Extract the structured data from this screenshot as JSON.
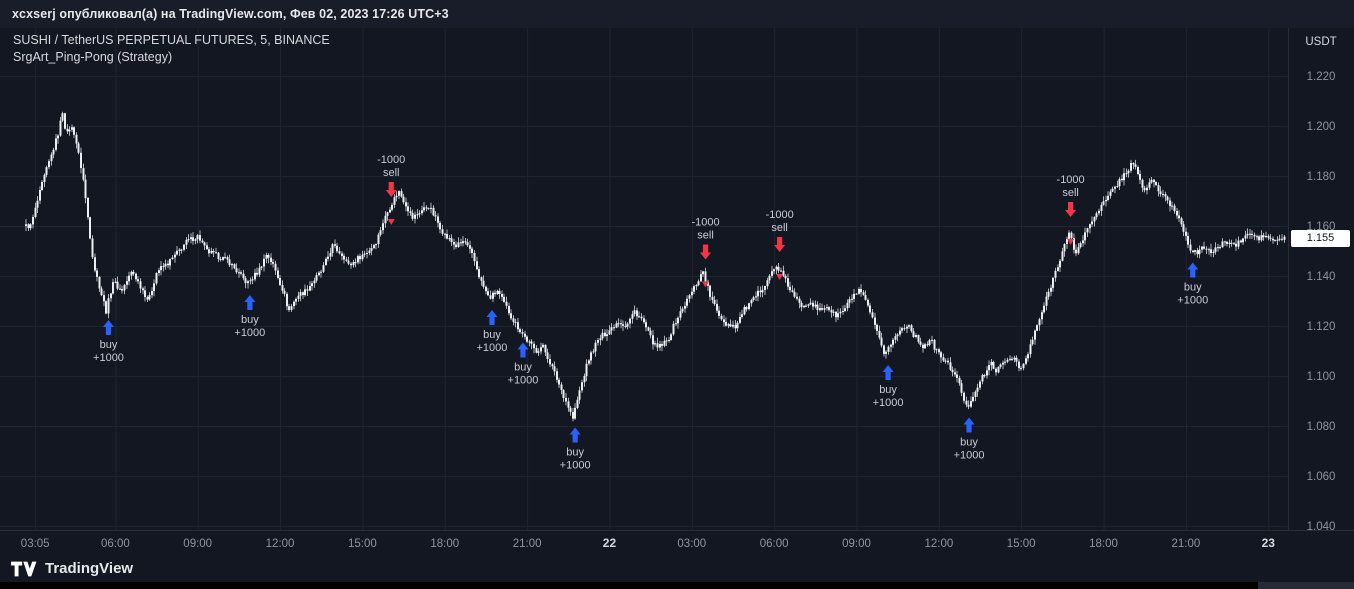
{
  "attribution": {
    "text": "xcxserj опубликовал(а) на TradingView.com, Фев 02, 2023 17:26 UTC+3"
  },
  "legend": {
    "symbol_line": "SUSHI / TetherUS PERPETUAL FUTURES, 5, BINANCE",
    "strategy_line": "SrgArt_Ping-Pong (Strategy)"
  },
  "axis": {
    "currency": "USDT",
    "last_price": "1.155"
  },
  "footer": {
    "logo_text": "TradingView"
  },
  "colors": {
    "background": "#131722",
    "topbar_bg": "#181d29",
    "grid": "#1e2433",
    "candle": "#eceef2",
    "candle_wick": "#d7dae0",
    "axis_text": "#8f95a0",
    "axis_text_major": "#d6d9de",
    "legend_text": "#d5d8dd",
    "marker_text": "#c7ccd3",
    "buy": "#2962ff",
    "sell": "#f23645",
    "badge_bg": "#ffffff",
    "badge_text": "#111722",
    "separator": "#2a2e39",
    "footer_text": "#e6e8eb",
    "bottom_strip": "#000000",
    "bottom_strip_right": "#262b36"
  },
  "chart_data": {
    "type": "candlestick",
    "symbol": "SUSHI / TetherUS PERPETUAL FUTURES",
    "interval": "5",
    "exchange": "BINANCE",
    "strategy": "SrgArt_Ping-Pong (Strategy)",
    "last_price": 1.155,
    "x_unit": "hours since 03:00 of first visible day (5-minute bars)",
    "x_range": [
      -0.25,
      45.6
    ],
    "visible_price_range": [
      1.038,
      1.239
    ],
    "grid": true,
    "y_ticks": [
      1.22,
      1.2,
      1.18,
      1.16,
      1.14,
      1.12,
      1.1,
      1.08,
      1.06,
      1.04
    ],
    "x_ticks": [
      {
        "t": 0.08,
        "label": "03:05"
      },
      {
        "t": 3,
        "label": "06:00"
      },
      {
        "t": 6,
        "label": "09:00"
      },
      {
        "t": 9,
        "label": "12:00"
      },
      {
        "t": 12,
        "label": "15:00"
      },
      {
        "t": 15,
        "label": "18:00"
      },
      {
        "t": 18,
        "label": "21:00"
      },
      {
        "t": 21,
        "label": "22",
        "major": true
      },
      {
        "t": 24,
        "label": "03:00"
      },
      {
        "t": 27,
        "label": "06:00"
      },
      {
        "t": 30,
        "label": "09:00"
      },
      {
        "t": 33,
        "label": "12:00"
      },
      {
        "t": 36,
        "label": "15:00"
      },
      {
        "t": 39,
        "label": "18:00"
      },
      {
        "t": 42,
        "label": "21:00"
      },
      {
        "t": 45,
        "label": "23",
        "major": true
      }
    ],
    "price_path": [
      [
        0,
        1.16
      ],
      [
        0.45,
        1.178
      ],
      [
        0.8,
        1.19
      ],
      [
        1.0,
        1.197
      ],
      [
        1.17,
        1.206
      ],
      [
        1.3,
        1.196
      ],
      [
        1.45,
        1.2
      ],
      [
        1.6,
        1.197
      ],
      [
        1.9,
        1.18
      ],
      [
        2.1,
        1.162
      ],
      [
        2.3,
        1.144
      ],
      [
        2.6,
        1.132
      ],
      [
        2.75,
        1.126
      ],
      [
        3.0,
        1.138
      ],
      [
        3.3,
        1.134
      ],
      [
        3.7,
        1.142
      ],
      [
        4.0,
        1.136
      ],
      [
        4.3,
        1.13
      ],
      [
        4.6,
        1.142
      ],
      [
        5.0,
        1.145
      ],
      [
        5.4,
        1.15
      ],
      [
        5.7,
        1.154
      ],
      [
        6.1,
        1.156
      ],
      [
        6.4,
        1.15
      ],
      [
        6.8,
        1.148
      ],
      [
        7.2,
        1.146
      ],
      [
        7.5,
        1.142
      ],
      [
        7.9,
        1.137
      ],
      [
        8.3,
        1.142
      ],
      [
        8.6,
        1.149
      ],
      [
        8.85,
        1.144
      ],
      [
        9.2,
        1.134
      ],
      [
        9.4,
        1.126
      ],
      [
        9.7,
        1.132
      ],
      [
        10.0,
        1.134
      ],
      [
        10.3,
        1.138
      ],
      [
        10.6,
        1.142
      ],
      [
        11.0,
        1.152
      ],
      [
        11.4,
        1.148
      ],
      [
        11.6,
        1.144
      ],
      [
        11.9,
        1.147
      ],
      [
        12.3,
        1.15
      ],
      [
        12.6,
        1.154
      ],
      [
        12.85,
        1.162
      ],
      [
        13.1,
        1.168
      ],
      [
        13.4,
        1.174
      ],
      [
        13.7,
        1.168
      ],
      [
        13.9,
        1.163
      ],
      [
        14.2,
        1.166
      ],
      [
        14.5,
        1.168
      ],
      [
        14.8,
        1.162
      ],
      [
        15.1,
        1.156
      ],
      [
        15.5,
        1.152
      ],
      [
        15.8,
        1.154
      ],
      [
        16.1,
        1.148
      ],
      [
        16.4,
        1.138
      ],
      [
        16.7,
        1.131
      ],
      [
        17.0,
        1.134
      ],
      [
        17.3,
        1.128
      ],
      [
        17.6,
        1.122
      ],
      [
        17.85,
        1.118
      ],
      [
        18.1,
        1.114
      ],
      [
        18.4,
        1.11
      ],
      [
        18.65,
        1.112
      ],
      [
        18.9,
        1.106
      ],
      [
        19.2,
        1.098
      ],
      [
        19.5,
        1.09
      ],
      [
        19.75,
        1.083
      ],
      [
        20.0,
        1.094
      ],
      [
        20.3,
        1.106
      ],
      [
        20.55,
        1.112
      ],
      [
        20.8,
        1.116
      ],
      [
        21.05,
        1.118
      ],
      [
        21.4,
        1.122
      ],
      [
        21.7,
        1.12
      ],
      [
        22.0,
        1.126
      ],
      [
        22.3,
        1.122
      ],
      [
        22.55,
        1.116
      ],
      [
        22.8,
        1.111
      ],
      [
        23.2,
        1.114
      ],
      [
        23.5,
        1.122
      ],
      [
        23.9,
        1.13
      ],
      [
        24.2,
        1.136
      ],
      [
        24.5,
        1.142
      ],
      [
        24.75,
        1.132
      ],
      [
        25.0,
        1.126
      ],
      [
        25.3,
        1.121
      ],
      [
        25.7,
        1.12
      ],
      [
        25.95,
        1.126
      ],
      [
        26.3,
        1.13
      ],
      [
        26.7,
        1.136
      ],
      [
        26.9,
        1.14
      ],
      [
        27.2,
        1.144
      ],
      [
        27.5,
        1.138
      ],
      [
        27.8,
        1.132
      ],
      [
        28.05,
        1.128
      ],
      [
        28.4,
        1.13
      ],
      [
        28.7,
        1.126
      ],
      [
        29.0,
        1.128
      ],
      [
        29.3,
        1.124
      ],
      [
        29.6,
        1.126
      ],
      [
        29.95,
        1.132
      ],
      [
        30.2,
        1.134
      ],
      [
        30.5,
        1.128
      ],
      [
        30.8,
        1.118
      ],
      [
        31.1,
        1.109
      ],
      [
        31.4,
        1.114
      ],
      [
        31.65,
        1.118
      ],
      [
        31.95,
        1.121
      ],
      [
        32.2,
        1.116
      ],
      [
        32.5,
        1.112
      ],
      [
        32.8,
        1.114
      ],
      [
        33.0,
        1.11
      ],
      [
        33.3,
        1.106
      ],
      [
        33.6,
        1.102
      ],
      [
        33.85,
        1.096
      ],
      [
        34.1,
        1.087
      ],
      [
        34.4,
        1.094
      ],
      [
        34.7,
        1.1
      ],
      [
        35.0,
        1.105
      ],
      [
        35.2,
        1.102
      ],
      [
        35.5,
        1.106
      ],
      [
        35.8,
        1.108
      ],
      [
        36.05,
        1.102
      ],
      [
        36.3,
        1.108
      ],
      [
        36.6,
        1.118
      ],
      [
        36.85,
        1.126
      ],
      [
        37.1,
        1.134
      ],
      [
        37.4,
        1.144
      ],
      [
        37.65,
        1.152
      ],
      [
        37.85,
        1.157
      ],
      [
        38.05,
        1.149
      ],
      [
        38.3,
        1.154
      ],
      [
        38.55,
        1.16
      ],
      [
        38.85,
        1.166
      ],
      [
        39.15,
        1.17
      ],
      [
        39.4,
        1.174
      ],
      [
        39.65,
        1.178
      ],
      [
        39.95,
        1.182
      ],
      [
        40.15,
        1.186
      ],
      [
        40.4,
        1.178
      ],
      [
        40.6,
        1.174
      ],
      [
        40.85,
        1.179
      ],
      [
        41.1,
        1.174
      ],
      [
        41.4,
        1.17
      ],
      [
        41.7,
        1.166
      ],
      [
        41.95,
        1.16
      ],
      [
        42.25,
        1.151
      ],
      [
        42.5,
        1.149
      ],
      [
        42.8,
        1.152
      ],
      [
        43.05,
        1.149
      ],
      [
        43.3,
        1.152
      ],
      [
        43.6,
        1.154
      ],
      [
        43.9,
        1.152
      ],
      [
        44.15,
        1.155
      ],
      [
        44.4,
        1.157
      ],
      [
        44.7,
        1.155
      ],
      [
        45.0,
        1.156
      ],
      [
        45.25,
        1.154
      ],
      [
        45.6,
        1.155
      ]
    ],
    "markers": [
      {
        "t": 2.75,
        "price": 1.124,
        "side": "buy",
        "lines": [
          "buy",
          "+1000"
        ]
      },
      {
        "t": 7.9,
        "price": 1.134,
        "side": "buy",
        "lines": [
          "buy",
          "+1000"
        ]
      },
      {
        "t": 13.05,
        "price": 1.17,
        "side": "sell",
        "lines": [
          "-1000",
          "sell"
        ]
      },
      {
        "t": 16.72,
        "price": 1.128,
        "side": "buy",
        "lines": [
          "buy",
          "+1000"
        ]
      },
      {
        "t": 17.85,
        "price": 1.115,
        "side": "buy",
        "lines": [
          "buy",
          "+1000"
        ]
      },
      {
        "t": 19.75,
        "price": 1.081,
        "side": "buy",
        "lines": [
          "buy",
          "+1000"
        ]
      },
      {
        "t": 24.5,
        "price": 1.145,
        "side": "sell",
        "lines": [
          "-1000",
          "sell"
        ]
      },
      {
        "t": 27.2,
        "price": 1.148,
        "side": "sell",
        "lines": [
          "-1000",
          "sell"
        ]
      },
      {
        "t": 31.15,
        "price": 1.106,
        "side": "buy",
        "lines": [
          "buy",
          "+1000"
        ]
      },
      {
        "t": 34.1,
        "price": 1.085,
        "side": "buy",
        "lines": [
          "buy",
          "+1000"
        ]
      },
      {
        "t": 37.8,
        "price": 1.162,
        "side": "sell",
        "lines": [
          "-1000",
          "sell"
        ]
      },
      {
        "t": 42.25,
        "price": 1.147,
        "side": "buy",
        "lines": [
          "buy",
          "+1000"
        ]
      }
    ]
  }
}
